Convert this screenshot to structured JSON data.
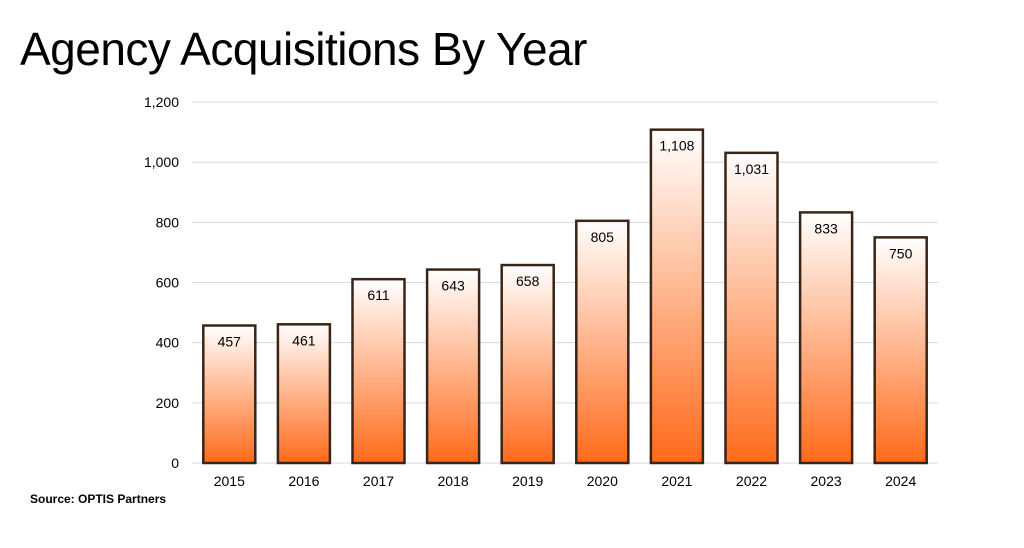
{
  "title": "Agency Acquisitions By Year",
  "source": "Source: OPTIS Partners",
  "colors": {
    "bar_top": "#ffffff",
    "bar_bottom": "#ff6a1a",
    "bar_border": "#3a2418",
    "grid": "#d9d9d9"
  },
  "chart_data": {
    "type": "bar",
    "categories": [
      "2015",
      "2016",
      "2017",
      "2018",
      "2019",
      "2020",
      "2021",
      "2022",
      "2023",
      "2024"
    ],
    "values": [
      457,
      461,
      611,
      643,
      658,
      805,
      1108,
      1031,
      833,
      750
    ],
    "data_labels": [
      "457",
      "461",
      "611",
      "643",
      "658",
      "805",
      "1,108",
      "1,031",
      "833",
      "750"
    ],
    "y_ticks": [
      0,
      200,
      400,
      600,
      800,
      1000,
      1200
    ],
    "y_tick_labels": [
      "0",
      "200",
      "400",
      "600",
      "800",
      "1,000",
      "1,200"
    ],
    "ylim": [
      0,
      1200
    ],
    "grid": true,
    "legend": false,
    "xlabel": "",
    "ylabel": ""
  }
}
